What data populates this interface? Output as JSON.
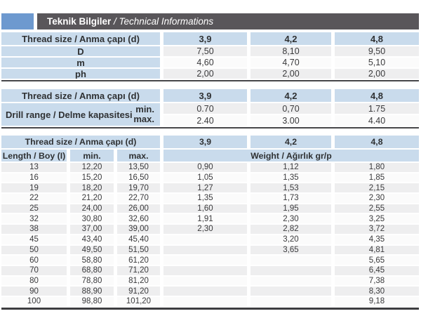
{
  "header": {
    "title_bold": "Teknik Bilgiler",
    "title_italic": " / Technical Informations"
  },
  "colors": {
    "accent_blue": "#6d99cf",
    "title_bar_gray": "#59565a",
    "cell_blue": "#c9dbec",
    "row_gray": "#eeeeef",
    "row_white": "#fbfbfb",
    "rule_dark": "#47474a"
  },
  "table1": {
    "header_label": "Thread size / Anma çapı (d)",
    "sizes": [
      "3,9",
      "4,2",
      "4,8"
    ],
    "rows": [
      {
        "label": "D",
        "values": [
          "7,50",
          "8,10",
          "9,50"
        ]
      },
      {
        "label": "m",
        "values": [
          "4,60",
          "4,70",
          "5,10"
        ]
      },
      {
        "label": "ph",
        "values": [
          "2,00",
          "2,00",
          "2,00"
        ]
      }
    ]
  },
  "table2": {
    "header_label": "Thread size / Anma çapı (d)",
    "sizes": [
      "3,9",
      "4,2",
      "4,8"
    ],
    "row_label": "Drill range / Delme kapasitesi",
    "rows": [
      {
        "label": "min.",
        "values": [
          "0.70",
          "0,70",
          "1.75"
        ]
      },
      {
        "label": "max.",
        "values": [
          "2.40",
          "3.00",
          "4.40"
        ]
      }
    ]
  },
  "table3": {
    "header_label": "Thread size / Anma çapı (d)",
    "sizes": [
      "3,9",
      "4,2",
      "4,8"
    ],
    "length_header": "Length / Boy (I)",
    "min_header": "min.",
    "max_header": "max.",
    "weight_header": "Weight / Ağırlık gr/p",
    "rows": [
      {
        "length": "13",
        "min": "12,20",
        "max": "13,50",
        "weights": [
          "0,90",
          "1,12",
          "1,80"
        ]
      },
      {
        "length": "16",
        "min": "15,20",
        "max": "16,50",
        "weights": [
          "1,05",
          "1,35",
          "1,85"
        ]
      },
      {
        "length": "19",
        "min": "18,20",
        "max": "19,70",
        "weights": [
          "1,27",
          "1,53",
          "2,15"
        ]
      },
      {
        "length": "22",
        "min": "21,20",
        "max": "22,70",
        "weights": [
          "1,35",
          "1,73",
          "2,30"
        ]
      },
      {
        "length": "25",
        "min": "24,00",
        "max": "26,00",
        "weights": [
          "1,60",
          "1,95",
          "2,55"
        ]
      },
      {
        "length": "32",
        "min": "30,80",
        "max": "32,60",
        "weights": [
          "1,91",
          "2,30",
          "3,25"
        ]
      },
      {
        "length": "38",
        "min": "37,00",
        "max": "39,00",
        "weights": [
          "2,30",
          "2,82",
          "3,72"
        ]
      },
      {
        "length": "45",
        "min": "43,40",
        "max": "45,40",
        "weights": [
          "",
          "3,20",
          "4,35"
        ]
      },
      {
        "length": "50",
        "min": "49,50",
        "max": "51,50",
        "weights": [
          "",
          "3,65",
          "4,81"
        ]
      },
      {
        "length": "60",
        "min": "58,80",
        "max": "61,20",
        "weights": [
          "",
          "",
          "5,65"
        ]
      },
      {
        "length": "70",
        "min": "68,80",
        "max": "71,20",
        "weights": [
          "",
          "",
          "6,45"
        ]
      },
      {
        "length": "80",
        "min": "78,80",
        "max": "81,20",
        "weights": [
          "",
          "",
          "7,38"
        ]
      },
      {
        "length": "90",
        "min": "88,90",
        "max": "91,20",
        "weights": [
          "",
          "",
          "8,30"
        ]
      },
      {
        "length": "100",
        "min": "98,80",
        "max": "101,20",
        "weights": [
          "",
          "",
          "9,18"
        ]
      }
    ]
  }
}
